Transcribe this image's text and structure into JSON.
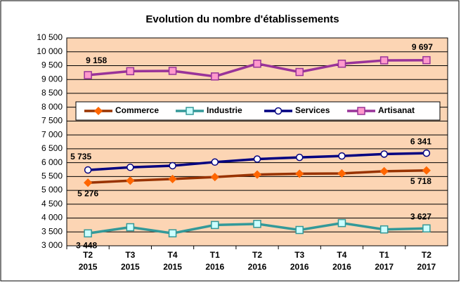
{
  "chart_data": {
    "type": "line",
    "title": "Evolution du nombre d'établissements",
    "categories": [
      "T2 2015",
      "T3 2015",
      "T4 2015",
      "T1 2016",
      "T2 2016",
      "T3 2016",
      "T4 2016",
      "T1 2017",
      "T2 2017"
    ],
    "series": [
      {
        "name": "Commerce",
        "color": "#993300",
        "marker_color": "#ff6600",
        "marker": "diamond",
        "values": [
          5276,
          5350,
          5410,
          5480,
          5570,
          5600,
          5610,
          5690,
          5718
        ],
        "value_labels": [
          "5 276",
          null,
          null,
          null,
          null,
          null,
          null,
          null,
          "5 718"
        ]
      },
      {
        "name": "Industrie",
        "color": "#339999",
        "marker_color": "#ccffff",
        "marker": "square",
        "values": [
          3448,
          3670,
          3450,
          3750,
          3790,
          3570,
          3820,
          3590,
          3627
        ],
        "value_labels": [
          "3 448",
          null,
          null,
          null,
          null,
          null,
          null,
          null,
          "3 627"
        ]
      },
      {
        "name": "Services",
        "color": "#000080",
        "marker_color": "#ffffff",
        "marker": "circle",
        "values": [
          5735,
          5830,
          5890,
          6020,
          6130,
          6190,
          6240,
          6310,
          6341
        ],
        "value_labels": [
          "5 735",
          null,
          null,
          null,
          null,
          null,
          null,
          null,
          "6 341"
        ]
      },
      {
        "name": "Artisanat",
        "color": "#993399",
        "marker_color": "#ff99cc",
        "marker": "square",
        "values": [
          9158,
          9300,
          9310,
          9110,
          9570,
          9270,
          9570,
          9690,
          9697
        ],
        "value_labels": [
          "9 158",
          null,
          null,
          null,
          null,
          null,
          null,
          null,
          "9 697"
        ]
      }
    ],
    "ylim": [
      3000,
      10500
    ],
    "yticks": [
      {
        "value": 3000,
        "label": "3 000"
      },
      {
        "value": 3500,
        "label": "3 500"
      },
      {
        "value": 4000,
        "label": "4 000"
      },
      {
        "value": 4500,
        "label": "4 500"
      },
      {
        "value": 5000,
        "label": "5 000"
      },
      {
        "value": 5500,
        "label": "5 500"
      },
      {
        "value": 6000,
        "label": "6 000"
      },
      {
        "value": 6500,
        "label": "6 500"
      },
      {
        "value": 7000,
        "label": "7 000"
      },
      {
        "value": 7500,
        "label": "7 500"
      },
      {
        "value": 8000,
        "label": "8 000"
      },
      {
        "value": 8500,
        "label": "8 500"
      },
      {
        "value": 9000,
        "label": "9 000"
      },
      {
        "value": 9500,
        "label": "9 500"
      },
      {
        "value": 10000,
        "label": "10 000"
      },
      {
        "value": 10500,
        "label": "10 500"
      }
    ],
    "grid": true,
    "plot_background": "#fcd5b4"
  }
}
